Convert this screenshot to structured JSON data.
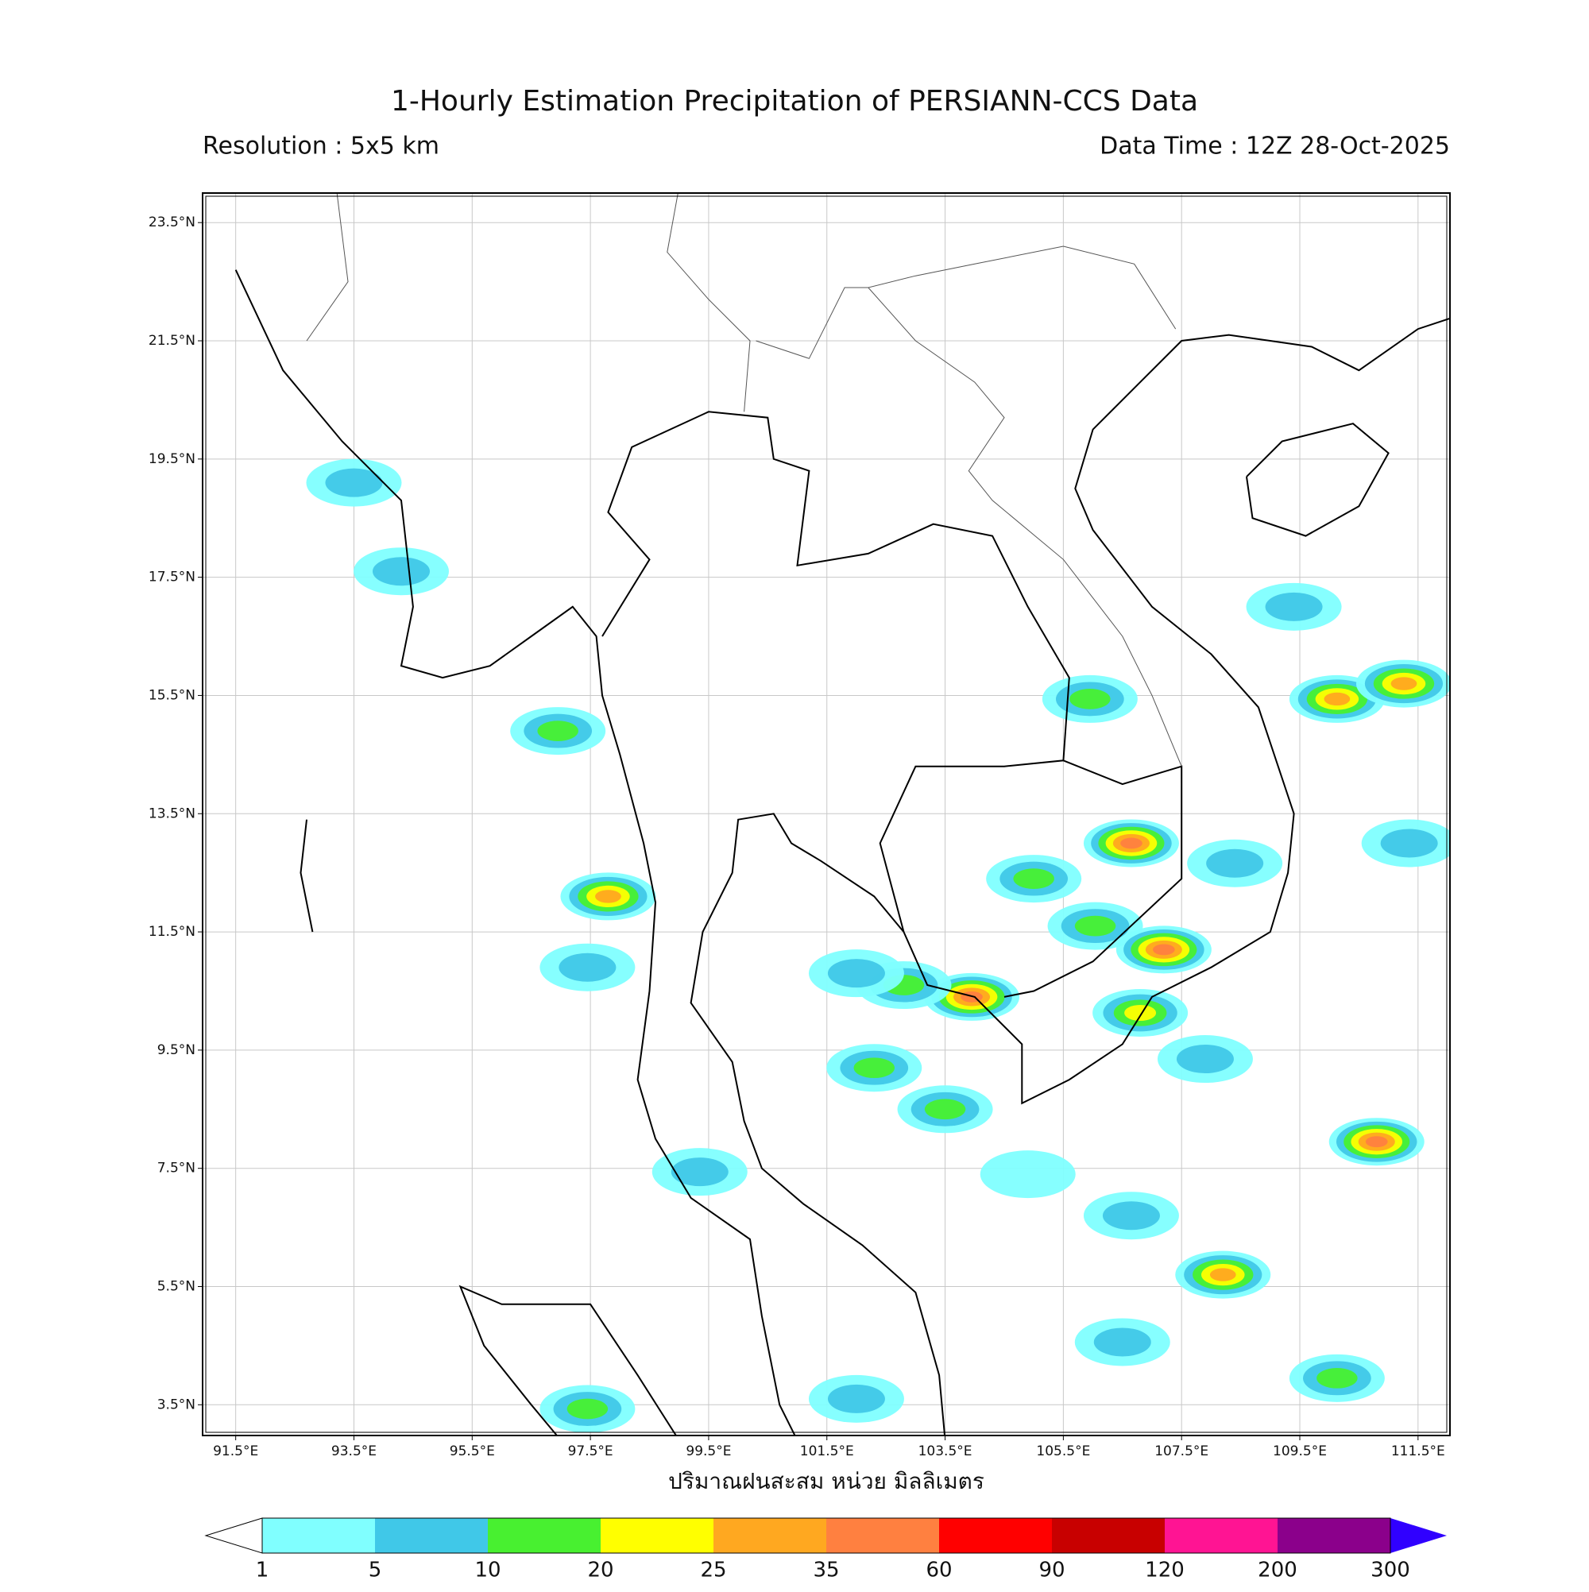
{
  "title": "1-Hourly Estimation Precipitation of PERSIANN-CCS Data",
  "resolution": "Resolution : 5x5 km",
  "data_time": "Data Time : 12Z 28-Oct-2025",
  "map": {
    "xlim": [
      90.94,
      112.04
    ],
    "ylim": [
      2.98,
      24.0
    ],
    "grid": true,
    "xticks": [
      {
        "value": 91.5,
        "label": "91.5°E"
      },
      {
        "value": 93.5,
        "label": "93.5°E"
      },
      {
        "value": 95.5,
        "label": "95.5°E"
      },
      {
        "value": 97.5,
        "label": "97.5°E"
      },
      {
        "value": 99.5,
        "label": "99.5°E"
      },
      {
        "value": 101.5,
        "label": "101.5°E"
      },
      {
        "value": 103.5,
        "label": "103.5°E"
      },
      {
        "value": 105.5,
        "label": "105.5°E"
      },
      {
        "value": 107.5,
        "label": "107.5°E"
      },
      {
        "value": 109.5,
        "label": "109.5°E"
      },
      {
        "value": 111.5,
        "label": "111.5°E"
      }
    ],
    "yticks": [
      {
        "value": 23.5,
        "label": "23.5°N"
      },
      {
        "value": 21.5,
        "label": "21.5°N"
      },
      {
        "value": 19.5,
        "label": "19.5°N"
      },
      {
        "value": 17.5,
        "label": "17.5°N"
      },
      {
        "value": 15.5,
        "label": "15.5°N"
      },
      {
        "value": 13.5,
        "label": "13.5°N"
      },
      {
        "value": 11.5,
        "label": "11.5°N"
      },
      {
        "value": 9.5,
        "label": "9.5°N"
      },
      {
        "value": 7.5,
        "label": "7.5°N"
      },
      {
        "value": 5.5,
        "label": "5.5°N"
      },
      {
        "value": 3.5,
        "label": "3.5°N"
      }
    ],
    "x_label": "ปริมาณฝนสะสม หน่วย มิลลิเมตร"
  },
  "colorbar": {
    "levels": [
      1,
      5,
      10,
      20,
      25,
      35,
      60,
      90,
      120,
      200,
      300
    ],
    "colors": [
      "#80ffff",
      "#40c8e8",
      "#48f030",
      "#ffff00",
      "#ffa820",
      "#ff8040",
      "#ff0000",
      "#c80000",
      "#ff1493",
      "#8b008b"
    ],
    "under_color": "#ffffff",
    "over_color": "#3000ff"
  },
  "rain_cells": [
    {
      "lon": 110.13,
      "lat": 15.44,
      "value": 25
    },
    {
      "lon": 111.26,
      "lat": 15.7,
      "value": 25
    },
    {
      "lon": 106.04,
      "lat": 11.6,
      "value": 10
    },
    {
      "lon": 105.0,
      "lat": 12.4,
      "value": 10
    },
    {
      "lon": 106.65,
      "lat": 13.0,
      "value": 35
    },
    {
      "lon": 107.2,
      "lat": 11.2,
      "value": 35
    },
    {
      "lon": 106.8,
      "lat": 10.13,
      "value": 20
    },
    {
      "lon": 97.8,
      "lat": 12.1,
      "value": 25
    },
    {
      "lon": 97.45,
      "lat": 10.9,
      "value": 5
    },
    {
      "lon": 97.45,
      "lat": 3.43,
      "value": 10
    },
    {
      "lon": 102.0,
      "lat": 3.6,
      "value": 5
    },
    {
      "lon": 110.8,
      "lat": 7.95,
      "value": 35
    },
    {
      "lon": 108.2,
      "lat": 5.7,
      "value": 25
    },
    {
      "lon": 106.65,
      "lat": 6.7,
      "value": 5
    },
    {
      "lon": 104.9,
      "lat": 7.4,
      "value": 1
    },
    {
      "lon": 103.5,
      "lat": 8.5,
      "value": 10
    },
    {
      "lon": 103.95,
      "lat": 10.4,
      "value": 35
    },
    {
      "lon": 102.8,
      "lat": 10.6,
      "value": 10
    },
    {
      "lon": 102.0,
      "lat": 10.8,
      "value": 5
    },
    {
      "lon": 108.4,
      "lat": 12.66,
      "value": 5
    },
    {
      "lon": 105.95,
      "lat": 15.44,
      "value": 10
    },
    {
      "lon": 96.95,
      "lat": 14.9,
      "value": 10
    },
    {
      "lon": 93.5,
      "lat": 19.1,
      "value": 5
    },
    {
      "lon": 94.3,
      "lat": 17.6,
      "value": 5
    },
    {
      "lon": 109.4,
      "lat": 17.0,
      "value": 5
    },
    {
      "lon": 106.5,
      "lat": 4.56,
      "value": 5
    },
    {
      "lon": 107.9,
      "lat": 9.35,
      "value": 5
    },
    {
      "lon": 102.3,
      "lat": 9.2,
      "value": 10
    },
    {
      "lon": 99.35,
      "lat": 7.44,
      "value": 5
    },
    {
      "lon": 111.35,
      "lat": 13.0,
      "value": 5
    },
    {
      "lon": 110.13,
      "lat": 3.95,
      "value": 10
    }
  ]
}
